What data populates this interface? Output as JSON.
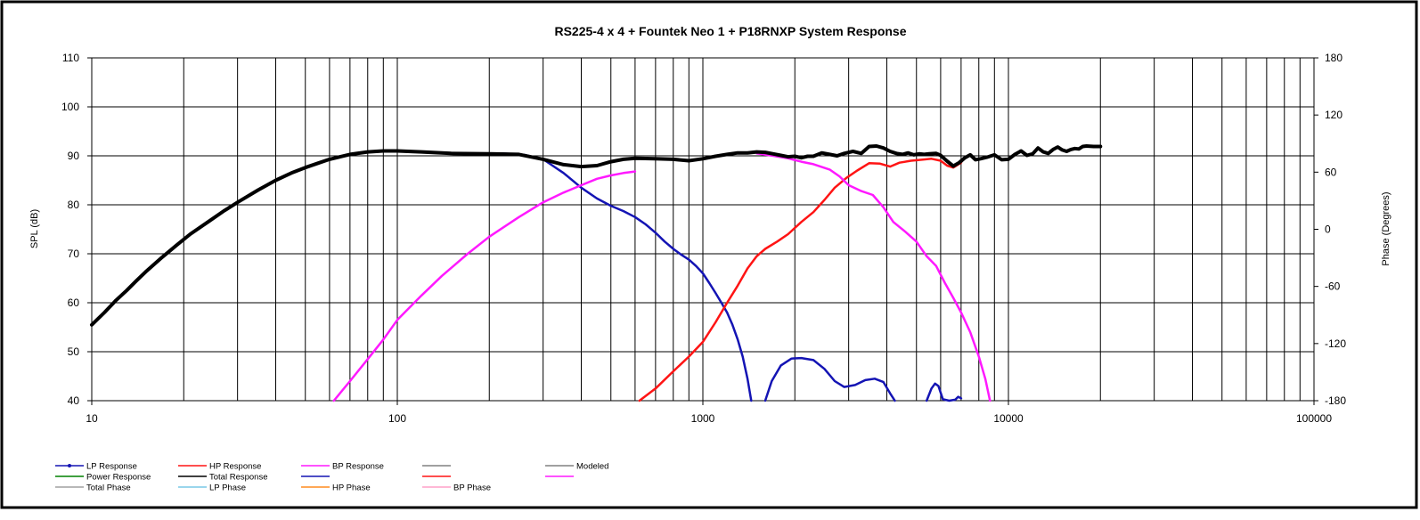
{
  "chart_data": {
    "type": "line",
    "title": "RS225-4 x 4 + Fountek Neo 1 + P18RNXP  System Response",
    "xlabel": "",
    "ylabel": "SPL (dB)",
    "y2label": "Phase (Degrees)",
    "x_scale": "log",
    "xlim": [
      10,
      100000
    ],
    "ylim": [
      40,
      110
    ],
    "y2lim": [
      -180,
      180
    ],
    "grid": true,
    "x_ticks": [
      "10",
      "100",
      "1000",
      "10000",
      "100000"
    ],
    "y_ticks": [
      "40",
      "50",
      "60",
      "70",
      "80",
      "90",
      "100",
      "110"
    ],
    "y2_ticks": [
      "-180",
      "-120",
      "-60",
      "0",
      "60",
      "120",
      "180"
    ],
    "series": [
      {
        "name": "LP Response",
        "color": "#1414b4",
        "segments": [
          [
            [
              220,
              90.5
            ],
            [
              260,
              90.2
            ],
            [
              300,
              89.3
            ],
            [
              350,
              86.5
            ],
            [
              400,
              83.5
            ],
            [
              450,
              81.3
            ],
            [
              500,
              79.8
            ],
            [
              550,
              78.7
            ],
            [
              600,
              77.5
            ],
            [
              650,
              76
            ],
            [
              700,
              74.3
            ],
            [
              750,
              72.5
            ],
            [
              800,
              71
            ],
            [
              850,
              69.8
            ],
            [
              900,
              68.8
            ],
            [
              950,
              67.5
            ],
            [
              1000,
              66
            ],
            [
              1050,
              64
            ],
            [
              1100,
              62
            ],
            [
              1150,
              60
            ],
            [
              1200,
              58
            ],
            [
              1250,
              55.5
            ],
            [
              1300,
              52.5
            ],
            [
              1350,
              49
            ],
            [
              1400,
              44.5
            ],
            [
              1440,
              40
            ]
          ],
          [
            [
              1600,
              40
            ],
            [
              1680,
              44
            ],
            [
              1800,
              47.2
            ],
            [
              1950,
              48.6
            ],
            [
              2100,
              48.7
            ],
            [
              2300,
              48.3
            ],
            [
              2500,
              46.5
            ],
            [
              2700,
              44
            ],
            [
              2900,
              42.8
            ],
            [
              3150,
              43.2
            ],
            [
              3400,
              44.2
            ],
            [
              3650,
              44.5
            ],
            [
              3900,
              43.8
            ],
            [
              4100,
              41.5
            ],
            [
              4250,
              40
            ]
          ],
          [
            [
              5400,
              40
            ],
            [
              5600,
              42.5
            ],
            [
              5750,
              43.5
            ],
            [
              5900,
              43
            ],
            [
              6100,
              40.3
            ],
            [
              6400,
              40
            ],
            [
              6700,
              40.2
            ],
            [
              6850,
              40.8
            ],
            [
              7000,
              40.5
            ]
          ]
        ]
      },
      {
        "name": "HP Response",
        "color": "#ff1414",
        "segments": [
          [
            [
              620,
              40
            ],
            [
              700,
              42.5
            ],
            [
              800,
              46
            ],
            [
              900,
              49
            ],
            [
              1000,
              52
            ],
            [
              1100,
              56
            ],
            [
              1200,
              60
            ],
            [
              1300,
              63.5
            ],
            [
              1400,
              67
            ],
            [
              1500,
              69.5
            ],
            [
              1600,
              71
            ],
            [
              1750,
              72.5
            ],
            [
              1900,
              74
            ],
            [
              2100,
              76.5
            ],
            [
              2300,
              78.5
            ],
            [
              2500,
              81
            ],
            [
              2700,
              83.5
            ],
            [
              2950,
              85.5
            ],
            [
              3200,
              87
            ],
            [
              3500,
              88.5
            ],
            [
              3800,
              88.4
            ],
            [
              4100,
              87.8
            ],
            [
              4400,
              88.6
            ],
            [
              4800,
              89
            ],
            [
              5200,
              89.2
            ],
            [
              5600,
              89.4
            ],
            [
              6000,
              89
            ],
            [
              6300,
              88
            ],
            [
              6600,
              87.6
            ],
            [
              7000,
              88.6
            ]
          ]
        ]
      },
      {
        "name": "BP Response",
        "color": "#ff19ff",
        "segments": [
          [
            [
              62,
              40
            ],
            [
              70,
              44
            ],
            [
              80,
              48.5
            ],
            [
              90,
              52.5
            ],
            [
              100,
              56.5
            ],
            [
              120,
              61.5
            ],
            [
              140,
              65.5
            ],
            [
              170,
              70
            ],
            [
              200,
              73.5
            ],
            [
              250,
              77.5
            ],
            [
              300,
              80.5
            ],
            [
              350,
              82.5
            ],
            [
              400,
              84
            ],
            [
              450,
              85.3
            ],
            [
              500,
              86
            ],
            [
              550,
              86.5
            ],
            [
              600,
              86.8
            ]
          ],
          [
            [
              1500,
              90.5
            ],
            [
              1700,
              90
            ],
            [
              1900,
              89.5
            ],
            [
              2100,
              88.8
            ],
            [
              2300,
              88.3
            ],
            [
              2600,
              87.2
            ],
            [
              2800,
              85.8
            ],
            [
              3000,
              84
            ],
            [
              3300,
              82.8
            ],
            [
              3600,
              82
            ],
            [
              3900,
              79.5
            ],
            [
              4200,
              76.5
            ],
            [
              4600,
              74.5
            ],
            [
              5000,
              72.5
            ],
            [
              5400,
              69.5
            ],
            [
              5800,
              67.5
            ],
            [
              6200,
              64
            ],
            [
              6600,
              61
            ],
            [
              7000,
              58
            ],
            [
              7500,
              54
            ],
            [
              8000,
              49
            ],
            [
              8400,
              44.5
            ],
            [
              8700,
              40
            ]
          ]
        ]
      },
      {
        "name": "Total Response",
        "color": "#000000",
        "segments": [
          [
            [
              10,
              55.5
            ],
            [
              11,
              58
            ],
            [
              12,
              60.5
            ],
            [
              13,
              62.5
            ],
            [
              14,
              64.5
            ],
            [
              15,
              66.3
            ],
            [
              17,
              69.3
            ],
            [
              19,
              71.8
            ],
            [
              21,
              74
            ],
            [
              24,
              76.5
            ],
            [
              27,
              78.7
            ],
            [
              30,
              80.5
            ],
            [
              35,
              83
            ],
            [
              40,
              85
            ],
            [
              45,
              86.5
            ],
            [
              50,
              87.6
            ],
            [
              55,
              88.5
            ],
            [
              60,
              89.3
            ],
            [
              65,
              89.8
            ],
            [
              70,
              90.3
            ],
            [
              80,
              90.8
            ],
            [
              90,
              91
            ],
            [
              100,
              91
            ],
            [
              120,
              90.8
            ],
            [
              150,
              90.5
            ],
            [
              200,
              90.4
            ],
            [
              250,
              90.3
            ],
            [
              300,
              89.3
            ],
            [
              350,
              88.2
            ],
            [
              400,
              87.8
            ],
            [
              450,
              88
            ],
            [
              500,
              88.8
            ],
            [
              550,
              89.3
            ],
            [
              600,
              89.5
            ],
            [
              700,
              89.4
            ],
            [
              800,
              89.3
            ],
            [
              900,
              89
            ],
            [
              1000,
              89.4
            ],
            [
              1100,
              89.9
            ],
            [
              1200,
              90.3
            ],
            [
              1300,
              90.6
            ],
            [
              1400,
              90.6
            ],
            [
              1500,
              90.8
            ],
            [
              1600,
              90.7
            ],
            [
              1700,
              90.4
            ],
            [
              1800,
              90.1
            ],
            [
              1900,
              89.8
            ],
            [
              2000,
              89.9
            ],
            [
              2100,
              89.6
            ],
            [
              2200,
              89.9
            ],
            [
              2300,
              89.9
            ],
            [
              2450,
              90.6
            ],
            [
              2600,
              90.3
            ],
            [
              2750,
              90
            ],
            [
              2900,
              90.5
            ],
            [
              3100,
              90.9
            ],
            [
              3300,
              90.5
            ],
            [
              3500,
              91.9
            ],
            [
              3700,
              92
            ],
            [
              3900,
              91.6
            ],
            [
              4100,
              90.9
            ],
            [
              4300,
              90.5
            ],
            [
              4500,
              90.3
            ],
            [
              4700,
              90.6
            ],
            [
              4900,
              90.2
            ],
            [
              5100,
              90.4
            ],
            [
              5300,
              90.3
            ],
            [
              5500,
              90.4
            ],
            [
              5800,
              90.5
            ],
            [
              6000,
              90.1
            ],
            [
              6300,
              88.9
            ],
            [
              6600,
              87.9
            ],
            [
              6900,
              88.6
            ],
            [
              7200,
              89.6
            ],
            [
              7500,
              90.2
            ],
            [
              7800,
              89.2
            ],
            [
              8100,
              89.4
            ],
            [
              8500,
              89.7
            ],
            [
              9000,
              90.2
            ],
            [
              9500,
              89.2
            ],
            [
              10000,
              89.3
            ],
            [
              10500,
              90.3
            ],
            [
              11000,
              91
            ],
            [
              11500,
              90.1
            ],
            [
              12000,
              90.4
            ],
            [
              12500,
              91.6
            ],
            [
              13000,
              90.8
            ],
            [
              13500,
              90.5
            ],
            [
              14000,
              91.3
            ],
            [
              14500,
              91.8
            ],
            [
              15000,
              91.2
            ],
            [
              15500,
              90.9
            ],
            [
              16000,
              91.3
            ],
            [
              16500,
              91.5
            ],
            [
              17000,
              91.4
            ],
            [
              17500,
              91.9
            ],
            [
              18000,
              92
            ],
            [
              19000,
              91.9
            ],
            [
              20000,
              91.9
            ]
          ]
        ]
      }
    ],
    "legend": [
      {
        "label": "LP Response",
        "color": "#1414b4",
        "marker": true
      },
      {
        "label": "HP Response",
        "color": "#ff1414"
      },
      {
        "label": "BP Response",
        "color": "#ff19ff"
      },
      {
        "label": "",
        "color": "#808080"
      },
      {
        "label": "Modeled",
        "color": "#808080"
      },
      {
        "label": "Power Response",
        "color": "#008000"
      },
      {
        "label": "Total Response",
        "color": "#000000"
      },
      {
        "label": "",
        "color": "#1414b4"
      },
      {
        "label": "",
        "color": "#ff1414"
      },
      {
        "label": "",
        "color": "#ff19ff"
      },
      {
        "label": "Total Phase",
        "color": "#a0a0a0"
      },
      {
        "label": "LP Phase",
        "color": "#78c8e6"
      },
      {
        "label": "HP Phase",
        "color": "#ff8c1e"
      },
      {
        "label": "BP Phase",
        "color": "#ffa0c8"
      }
    ]
  }
}
